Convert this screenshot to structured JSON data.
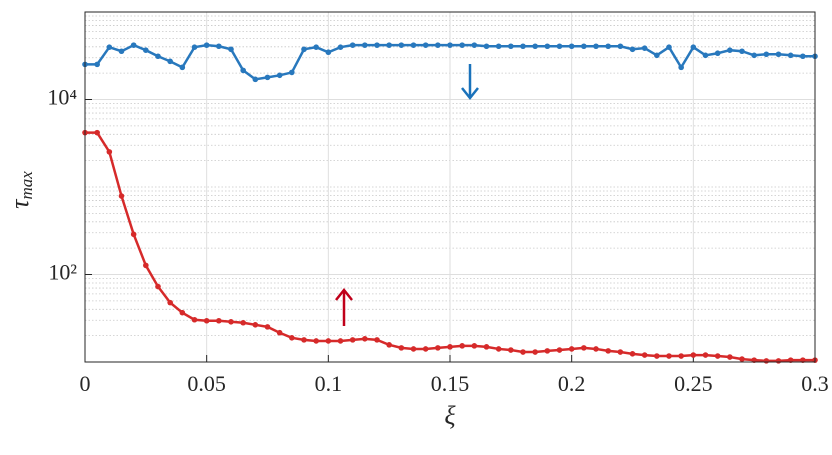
{
  "chart_data": {
    "type": "line",
    "x_label": "ξ",
    "y_label": "τ",
    "y_label_subscript": "max",
    "x": [
      0,
      0.005,
      0.01,
      0.015,
      0.02,
      0.025,
      0.03,
      0.035,
      0.04,
      0.045,
      0.05,
      0.055,
      0.06,
      0.065,
      0.07,
      0.075,
      0.08,
      0.085,
      0.09,
      0.095,
      0.1,
      0.105,
      0.11,
      0.115,
      0.12,
      0.125,
      0.13,
      0.135,
      0.14,
      0.145,
      0.15,
      0.155,
      0.16,
      0.165,
      0.17,
      0.175,
      0.18,
      0.185,
      0.19,
      0.195,
      0.2,
      0.205,
      0.21,
      0.215,
      0.22,
      0.225,
      0.23,
      0.235,
      0.24,
      0.245,
      0.25,
      0.255,
      0.26,
      0.265,
      0.27,
      0.275,
      0.28,
      0.285,
      0.29,
      0.295,
      0.3
    ],
    "series": [
      {
        "color": "#2878bd",
        "values": [
          25200,
          25200,
          39600,
          35600,
          41800,
          36600,
          31200,
          27300,
          23300,
          39600,
          41800,
          40600,
          37500,
          21500,
          17000,
          17900,
          18900,
          20400,
          37500,
          39600,
          34700,
          39600,
          41800,
          41800,
          41800,
          41800,
          41800,
          41800,
          41800,
          41800,
          41800,
          41800,
          41800,
          40600,
          40600,
          40600,
          40600,
          40600,
          40600,
          40600,
          40600,
          40600,
          40600,
          40600,
          40600,
          37500,
          38600,
          32000,
          39600,
          23300,
          39600,
          32000,
          33800,
          36600,
          35600,
          32000,
          32900,
          32900,
          32000,
          31200,
          31200
        ]
      },
      {
        "color": "#d62a2a",
        "values": [
          4180,
          4180,
          2520,
          788,
          288,
          127,
          72.8,
          47.7,
          36.6,
          30.4,
          29.6,
          29.6,
          28.8,
          28.1,
          26.6,
          25.2,
          21.6,
          18.9,
          17.9,
          17.4,
          17.4,
          17.4,
          17.9,
          18.4,
          17.9,
          15.7,
          14.5,
          14.1,
          14.1,
          14.5,
          14.9,
          15.3,
          15.3,
          14.9,
          14.1,
          13.7,
          13.0,
          13.0,
          13.4,
          13.7,
          14.1,
          14.5,
          14.1,
          13.4,
          13.0,
          12.4,
          12.0,
          11.7,
          11.7,
          11.7,
          12.0,
          12.0,
          11.7,
          11.4,
          10.8,
          10.5,
          10.3,
          10.3,
          10.5,
          10.5,
          10.5
        ]
      }
    ],
    "xlim": [
      0,
      0.3
    ],
    "xticks": [
      0,
      0.05,
      0.1,
      0.15,
      0.2,
      0.25,
      0.3
    ],
    "ylim": [
      10,
      100000
    ],
    "ylog": true,
    "yticks": [
      {
        "value": 100,
        "label": "10²"
      },
      {
        "value": 10000,
        "label": "10⁴"
      }
    ],
    "grid": true,
    "minor_grid": true
  }
}
